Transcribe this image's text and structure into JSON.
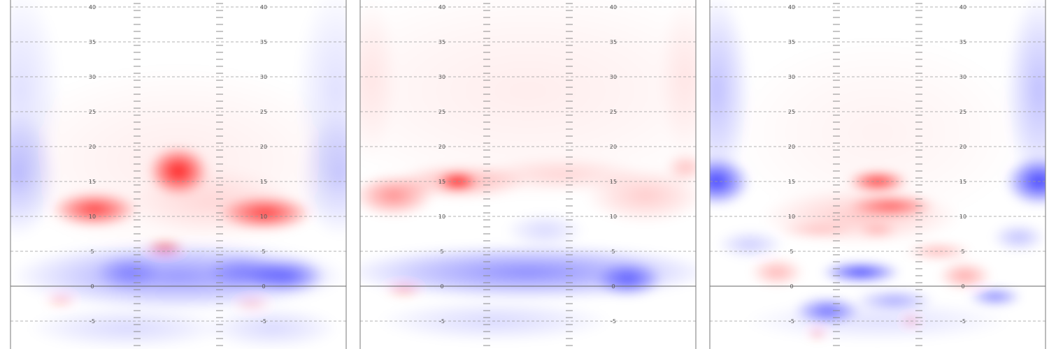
{
  "chart_data": [
    {
      "type": "heatmap",
      "ylim": [
        -9,
        41
      ],
      "yticks": [
        "40",
        "35",
        "30",
        "25",
        "20",
        "15",
        "10",
        "5",
        "0",
        "-5"
      ],
      "grid": "dashed horizontal every 5",
      "colors": {
        "positive": "#ff0000",
        "negative": "#0000ff",
        "neutral": "#ffffff"
      },
      "blobs": [
        {
          "x": 0.5,
          "y": 18,
          "rx": 0.55,
          "ry": 14,
          "v": 0.07
        },
        {
          "x": 0.02,
          "y": 16,
          "rx": 0.12,
          "ry": 9,
          "v": -0.25
        },
        {
          "x": 0.98,
          "y": 16,
          "rx": 0.12,
          "ry": 9,
          "v": -0.2
        },
        {
          "x": 0.03,
          "y": 28,
          "rx": 0.12,
          "ry": 15,
          "v": -0.12
        },
        {
          "x": 0.97,
          "y": 28,
          "rx": 0.12,
          "ry": 15,
          "v": -0.12
        },
        {
          "x": 0.25,
          "y": 11,
          "rx": 0.13,
          "ry": 2.5,
          "v": 0.75
        },
        {
          "x": 0.5,
          "y": 16.5,
          "rx": 0.09,
          "ry": 3.5,
          "v": 0.9
        },
        {
          "x": 0.76,
          "y": 10.5,
          "rx": 0.14,
          "ry": 2.5,
          "v": 0.75
        },
        {
          "x": 0.46,
          "y": 5.5,
          "rx": 0.06,
          "ry": 1.2,
          "v": 0.5
        },
        {
          "x": 0.6,
          "y": 12,
          "rx": 0.25,
          "ry": 5,
          "v": 0.12
        },
        {
          "x": 0.5,
          "y": 1.5,
          "rx": 0.5,
          "ry": 5,
          "v": -0.4
        },
        {
          "x": 0.82,
          "y": 1.5,
          "rx": 0.12,
          "ry": 2.5,
          "v": -0.55
        },
        {
          "x": 0.7,
          "y": 2,
          "rx": 0.12,
          "ry": 2.5,
          "v": -0.35
        },
        {
          "x": 0.35,
          "y": 2,
          "rx": 0.1,
          "ry": 2.5,
          "v": -0.3
        },
        {
          "x": 0.15,
          "y": -2,
          "rx": 0.05,
          "ry": 1,
          "v": 0.25
        },
        {
          "x": 0.72,
          "y": -2.5,
          "rx": 0.06,
          "ry": 1,
          "v": 0.2
        },
        {
          "x": 0.35,
          "y": -6,
          "rx": 0.3,
          "ry": 3,
          "v": -0.15
        },
        {
          "x": 0.78,
          "y": -6,
          "rx": 0.2,
          "ry": 3,
          "v": -0.15
        }
      ]
    },
    {
      "type": "heatmap",
      "ylim": [
        -9,
        41
      ],
      "yticks": [
        "40",
        "35",
        "30",
        "25",
        "20",
        "15",
        "10",
        "5",
        "0",
        "-5"
      ],
      "grid": "dashed horizontal every 5",
      "colors": {
        "positive": "#ff0000",
        "negative": "#0000ff",
        "neutral": "#ffffff"
      },
      "blobs": [
        {
          "x": 0.5,
          "y": 28,
          "rx": 0.7,
          "ry": 16,
          "v": 0.07
        },
        {
          "x": 0.03,
          "y": 30,
          "rx": 0.08,
          "ry": 12,
          "v": 0.08
        },
        {
          "x": 0.97,
          "y": 30,
          "rx": 0.08,
          "ry": 12,
          "v": 0.08
        },
        {
          "x": 0.1,
          "y": 13,
          "rx": 0.12,
          "ry": 3,
          "v": 0.45
        },
        {
          "x": 0.29,
          "y": 15,
          "rx": 0.06,
          "ry": 1.3,
          "v": 0.9
        },
        {
          "x": 0.3,
          "y": 15,
          "rx": 0.2,
          "ry": 2.5,
          "v": 0.3
        },
        {
          "x": 0.6,
          "y": 16,
          "rx": 0.25,
          "ry": 2.5,
          "v": 0.15
        },
        {
          "x": 0.85,
          "y": 13,
          "rx": 0.18,
          "ry": 4,
          "v": 0.2
        },
        {
          "x": 0.97,
          "y": 17,
          "rx": 0.06,
          "ry": 2,
          "v": 0.25
        },
        {
          "x": 0.5,
          "y": 2,
          "rx": 0.55,
          "ry": 4,
          "v": -0.45
        },
        {
          "x": 0.8,
          "y": 1,
          "rx": 0.1,
          "ry": 2.5,
          "v": -0.55
        },
        {
          "x": 0.55,
          "y": 8,
          "rx": 0.12,
          "ry": 2.5,
          "v": -0.15
        },
        {
          "x": 0.13,
          "y": -0.5,
          "rx": 0.06,
          "ry": 1,
          "v": 0.3
        },
        {
          "x": 0.4,
          "y": -5,
          "rx": 0.35,
          "ry": 3,
          "v": -0.15
        }
      ]
    },
    {
      "type": "heatmap",
      "ylim": [
        -9,
        41
      ],
      "yticks": [
        "40",
        "35",
        "30",
        "25",
        "20",
        "15",
        "10",
        "5",
        "0",
        "-5"
      ],
      "grid": "dashed horizontal every 5",
      "colors": {
        "positive": "#ff0000",
        "negative": "#0000ff",
        "neutral": "#ffffff"
      },
      "blobs": [
        {
          "x": 0.5,
          "y": 22,
          "rx": 0.45,
          "ry": 14,
          "v": 0.05
        },
        {
          "x": 0.02,
          "y": 15,
          "rx": 0.1,
          "ry": 3.5,
          "v": -0.75
        },
        {
          "x": 0.98,
          "y": 15,
          "rx": 0.1,
          "ry": 3.5,
          "v": -0.75
        },
        {
          "x": 0.02,
          "y": 28,
          "rx": 0.1,
          "ry": 14,
          "v": -0.25
        },
        {
          "x": 0.98,
          "y": 28,
          "rx": 0.1,
          "ry": 14,
          "v": -0.25
        },
        {
          "x": 0.5,
          "y": 15,
          "rx": 0.09,
          "ry": 1.5,
          "v": 0.8
        },
        {
          "x": 0.54,
          "y": 11.5,
          "rx": 0.13,
          "ry": 1.5,
          "v": 0.6
        },
        {
          "x": 0.45,
          "y": 10,
          "rx": 0.3,
          "ry": 4,
          "v": 0.2
        },
        {
          "x": 0.32,
          "y": 8,
          "rx": 0.12,
          "ry": 1,
          "v": 0.2
        },
        {
          "x": 0.5,
          "y": 8,
          "rx": 0.06,
          "ry": 1,
          "v": 0.25
        },
        {
          "x": 0.68,
          "y": 5,
          "rx": 0.1,
          "ry": 1.2,
          "v": 0.3
        },
        {
          "x": 0.2,
          "y": 2,
          "rx": 0.08,
          "ry": 2,
          "v": 0.3
        },
        {
          "x": 0.76,
          "y": 1.5,
          "rx": 0.08,
          "ry": 2,
          "v": 0.35
        },
        {
          "x": 0.45,
          "y": 2,
          "rx": 0.12,
          "ry": 1.5,
          "v": -0.75
        },
        {
          "x": 0.35,
          "y": -3.5,
          "rx": 0.1,
          "ry": 2,
          "v": -0.55
        },
        {
          "x": 0.85,
          "y": -1.5,
          "rx": 0.08,
          "ry": 1.3,
          "v": -0.5
        },
        {
          "x": 0.55,
          "y": -2,
          "rx": 0.12,
          "ry": 1.5,
          "v": -0.35
        },
        {
          "x": 0.12,
          "y": 6,
          "rx": 0.1,
          "ry": 2,
          "v": -0.2
        },
        {
          "x": 0.92,
          "y": 7,
          "rx": 0.08,
          "ry": 2,
          "v": -0.25
        },
        {
          "x": 0.5,
          "y": -5,
          "rx": 0.4,
          "ry": 3,
          "v": -0.12
        },
        {
          "x": 0.6,
          "y": -5,
          "rx": 0.03,
          "ry": 0.8,
          "v": 0.3
        },
        {
          "x": 0.32,
          "y": -6.8,
          "rx": 0.03,
          "ry": 0.7,
          "v": 0.35
        }
      ]
    }
  ]
}
